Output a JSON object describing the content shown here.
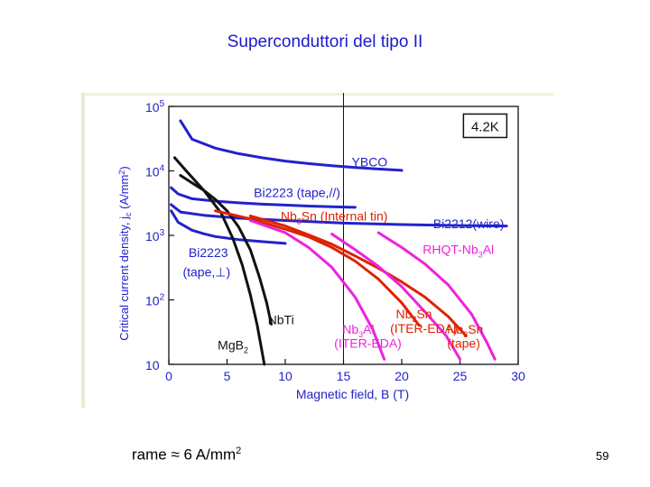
{
  "slide": {
    "title": "Superconduttori del tipo II",
    "footer_prefix": "rame",
    "footer_approx": "≈",
    "footer_value": "6 A/mm",
    "footer_exponent": "2",
    "page_number": "59"
  },
  "colors": {
    "title": "#1a1acc",
    "blue_curves": "#2222cc",
    "black_curves": "#111111",
    "red_curves": "#dd2200",
    "magenta_curves": "#ee22dd",
    "labels": "#2222cc"
  },
  "chart_data": {
    "type": "line",
    "x_scale": "linear",
    "y_scale": "log",
    "xlim": [
      0,
      30
    ],
    "ylim": [
      10,
      100000
    ],
    "xlabel": "Magnetic field,  B (T)",
    "ylabel_prefix": "Critical current density,  j",
    "ylabel_sub": "c",
    "ylabel_unit": " (A/mm",
    "ylabel_sup": "2",
    "ylabel_close": ")",
    "x_ticks": [
      "0",
      "5",
      "10",
      "15",
      "20",
      "25",
      "30"
    ],
    "y_ticks": [
      {
        "base": "10",
        "exp": "5"
      },
      {
        "base": "10",
        "exp": "4"
      },
      {
        "base": "10",
        "exp": "3"
      },
      {
        "base": "10",
        "exp": "2"
      },
      {
        "base": "10",
        "exp": ""
      }
    ],
    "grid": false,
    "temperature_label": "4.2K",
    "reference_line_x": 15,
    "series": [
      {
        "name": "YBCO",
        "color": "blue",
        "x": [
          1,
          2,
          4,
          6,
          8,
          10,
          12,
          14,
          16,
          18,
          20
        ],
        "y": [
          60000,
          31000,
          22500,
          18500,
          16000,
          14200,
          13000,
          12000,
          11300,
          10700,
          10200
        ]
      },
      {
        "name": "Bi2223 (tape,//)",
        "color": "blue",
        "x": [
          0.2,
          0.8,
          2,
          4,
          6,
          8,
          10,
          12,
          14,
          16
        ],
        "y": [
          5500,
          4400,
          3700,
          3400,
          3200,
          3050,
          2950,
          2850,
          2780,
          2720
        ]
      },
      {
        "name": "Bi2212(wire)",
        "color": "blue",
        "x": [
          0.2,
          1,
          3,
          6,
          10,
          15,
          20,
          25,
          29
        ],
        "y": [
          3000,
          2300,
          2050,
          1850,
          1700,
          1550,
          1470,
          1420,
          1400
        ]
      },
      {
        "name": "Bi2223 (tape,⊥)",
        "color": "blue",
        "x": [
          0.2,
          0.8,
          2,
          3,
          4,
          6,
          8,
          10
        ],
        "y": [
          2400,
          1600,
          1200,
          1060,
          960,
          860,
          800,
          750
        ]
      },
      {
        "name": "MgB2",
        "color": "black",
        "x": [
          0.5,
          1.5,
          3,
          4.5,
          5.5,
          6.3,
          7,
          7.6,
          8.2
        ],
        "y": [
          16000,
          10000,
          5000,
          2200,
          900,
          350,
          120,
          40,
          10
        ]
      },
      {
        "name": "NbTi",
        "color": "black",
        "x": [
          1,
          2,
          3,
          4,
          5,
          6,
          7,
          7.8,
          8.4,
          8.8
        ],
        "y": [
          8500,
          6500,
          5000,
          3600,
          2400,
          1350,
          600,
          220,
          90,
          42
        ]
      },
      {
        "name": "Nb3Sn (Internal tin)",
        "color": "red",
        "x": [
          7,
          10,
          12,
          14,
          16,
          18,
          20,
          22,
          24,
          25.5
        ],
        "y": [
          2000,
          1400,
          1020,
          730,
          480,
          310,
          190,
          110,
          55,
          28
        ]
      },
      {
        "name": "Nb3Sn (ITER-EDA)",
        "color": "red",
        "x": [
          4,
          7,
          10,
          12,
          14,
          16,
          18,
          20,
          21.5
        ],
        "y": [
          2400,
          1800,
          1250,
          950,
          650,
          400,
          210,
          90,
          40
        ]
      },
      {
        "name": "RHQT-Nb3Al",
        "color": "magenta",
        "x": [
          18,
          20,
          22,
          24,
          26,
          27.3,
          28
        ],
        "y": [
          1100,
          650,
          360,
          170,
          60,
          22,
          12
        ]
      },
      {
        "name": "Nb3Al (ITER-EDA)",
        "color": "magenta",
        "x": [
          7,
          10,
          12,
          14,
          16,
          17.5,
          18.5
        ],
        "y": [
          1700,
          1100,
          650,
          320,
          110,
          35,
          12
        ]
      },
      {
        "name": "Nb3Sn (tape)",
        "color": "magenta",
        "x": [
          14,
          16,
          18,
          20,
          22,
          23.8,
          25
        ],
        "y": [
          1050,
          600,
          330,
          160,
          65,
          28,
          12
        ]
      }
    ],
    "annotations": [
      {
        "id": "ybco",
        "text": "YBCO",
        "color": "blue",
        "x": 15.7,
        "y": 11800
      },
      {
        "id": "bi2223-par",
        "text": "Bi2223 (tape,//)",
        "color": "blue",
        "x": 7.3,
        "y": 3900
      },
      {
        "id": "bi2212",
        "text": "Bi2212(wire)",
        "color": "blue",
        "x": 22.7,
        "y": 1300
      },
      {
        "id": "bi2223-perp-1",
        "text": "Bi2223",
        "color": "blue",
        "x": 1.7,
        "y": 460
      },
      {
        "id": "bi2223-perp-2",
        "text": "(tape,⊥)",
        "color": "blue",
        "x": 1.2,
        "y": 230
      },
      {
        "id": "nbti",
        "text": "NbTi",
        "color": "black",
        "x": 8.5,
        "y": 42
      },
      {
        "id": "mgb2",
        "text": "MgB",
        "sub": "2",
        "color": "black",
        "x": 4.2,
        "y": 17
      },
      {
        "id": "nb3sn-internal",
        "text": "Nb",
        "sub": "3",
        "tail": "Sn (Internal tin)",
        "color": "red",
        "x": 9.6,
        "y": 1700
      },
      {
        "id": "rhqt",
        "text": "RHQT-Nb",
        "sub": "3",
        "tail": "Al",
        "color": "magenta",
        "x": 21.8,
        "y": 520
      },
      {
        "id": "nb3sn-iter",
        "text": "Nb",
        "sub": "3",
        "tail": "Sn",
        "color": "red",
        "x": 19.5,
        "y": 52
      },
      {
        "id": "nb3sn-iter-2",
        "text": "(ITER-EDA)",
        "color": "red",
        "x": 19,
        "y": 31
      },
      {
        "id": "nb3al-iter",
        "text": "Nb",
        "sub": "3",
        "tail": "Al",
        "color": "magenta",
        "x": 14.9,
        "y": 30
      },
      {
        "id": "nb3al-iter-2",
        "text": "(ITER-EDA)",
        "color": "magenta",
        "x": 14.2,
        "y": 18
      },
      {
        "id": "nb3sn-tape",
        "text": "Nb",
        "sub": "3",
        "tail": "Sn",
        "color": "red",
        "x": 23.9,
        "y": 30
      },
      {
        "id": "nb3sn-tape-2",
        "text": "(tape)",
        "color": "red",
        "x": 23.9,
        "y": 18
      }
    ]
  }
}
